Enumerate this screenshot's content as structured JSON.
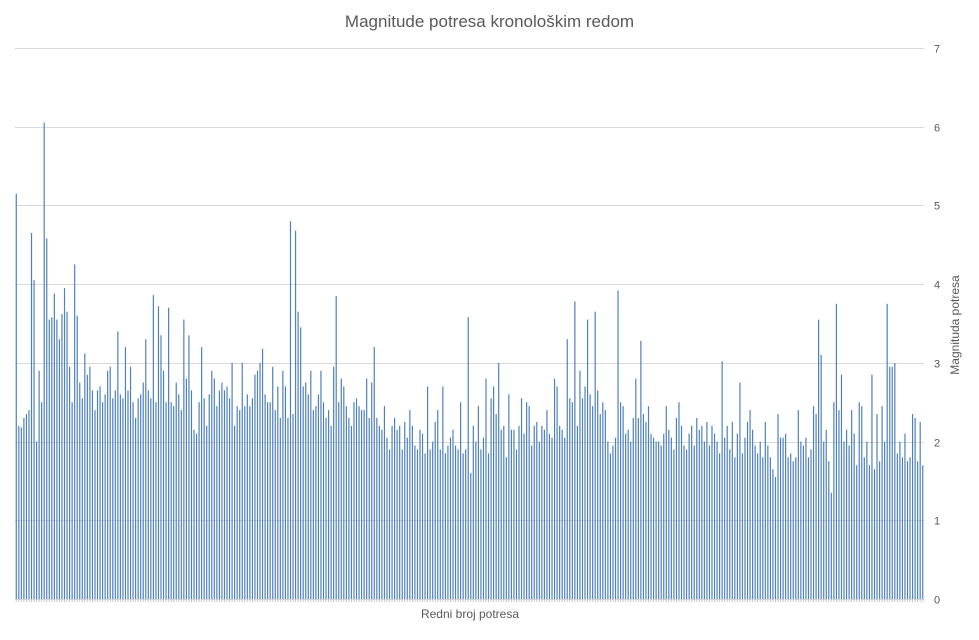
{
  "chart_data": {
    "type": "bar",
    "title": "Magnitude potresa kronološkim redom",
    "xlabel": "Redni broj potresa",
    "ylabel": "Magnituda potresa",
    "ylim": [
      0,
      7
    ],
    "yticks": [
      "0",
      "1",
      "2",
      "3",
      "4",
      "5",
      "6",
      "7"
    ],
    "grid": true,
    "y_axis_side": "right",
    "bar_color": "#4f81bd",
    "values": [
      5.15,
      2.2,
      2.18,
      2.3,
      2.35,
      2.4,
      4.65,
      4.05,
      2.0,
      2.9,
      2.5,
      6.05,
      4.58,
      3.55,
      3.58,
      3.88,
      3.55,
      3.3,
      3.62,
      3.95,
      3.65,
      2.95,
      2.5,
      4.25,
      3.6,
      2.75,
      2.55,
      3.12,
      2.85,
      2.95,
      2.65,
      2.4,
      2.65,
      2.7,
      2.5,
      2.6,
      2.9,
      2.95,
      2.55,
      2.65,
      3.4,
      2.6,
      2.55,
      3.2,
      2.65,
      2.95,
      2.5,
      2.3,
      2.55,
      2.6,
      2.75,
      3.3,
      2.65,
      2.55,
      3.86,
      2.5,
      3.72,
      3.35,
      2.9,
      2.5,
      3.7,
      2.5,
      2.45,
      2.75,
      2.6,
      2.4,
      3.55,
      2.8,
      3.35,
      2.65,
      2.15,
      2.1,
      2.5,
      3.2,
      2.55,
      2.2,
      2.6,
      2.9,
      2.8,
      2.45,
      2.65,
      2.75,
      2.65,
      2.7,
      2.55,
      3.0,
      2.2,
      2.45,
      2.4,
      3.0,
      2.45,
      2.6,
      2.45,
      2.55,
      2.85,
      2.9,
      3.0,
      3.18,
      2.6,
      2.5,
      2.5,
      2.95,
      2.4,
      2.7,
      2.3,
      2.9,
      2.7,
      2.3,
      4.8,
      2.35,
      4.68,
      3.65,
      3.45,
      2.7,
      2.75,
      2.6,
      2.9,
      2.4,
      2.45,
      2.6,
      2.9,
      2.5,
      2.3,
      2.4,
      2.2,
      2.95,
      3.85,
      2.5,
      2.8,
      2.7,
      2.45,
      2.3,
      2.2,
      2.5,
      2.55,
      2.45,
      2.4,
      2.4,
      2.8,
      2.3,
      2.75,
      3.2,
      2.3,
      2.2,
      2.15,
      2.45,
      2.05,
      1.9,
      2.2,
      2.3,
      2.15,
      2.2,
      1.9,
      2.25,
      2.05,
      2.4,
      2.2,
      1.95,
      1.9,
      2.15,
      2.1,
      1.85,
      2.7,
      1.9,
      2.0,
      2.25,
      2.4,
      1.9,
      2.7,
      1.85,
      1.95,
      2.05,
      2.15,
      1.95,
      1.9,
      2.5,
      1.85,
      1.9,
      3.58,
      1.6,
      2.2,
      2.0,
      2.45,
      1.9,
      2.05,
      2.8,
      1.85,
      2.55,
      2.7,
      2.35,
      3.0,
      2.15,
      2.2,
      1.8,
      2.6,
      2.15,
      2.15,
      1.9,
      2.2,
      2.55,
      2.1,
      2.5,
      2.45,
      1.95,
      2.2,
      2.25,
      2.0,
      2.2,
      2.15,
      2.4,
      2.1,
      2.05,
      2.8,
      2.7,
      2.2,
      2.15,
      2.05,
      3.3,
      2.55,
      2.5,
      3.78,
      2.2,
      2.9,
      2.55,
      2.7,
      3.55,
      2.6,
      2.45,
      3.65,
      2.65,
      2.35,
      2.5,
      2.4,
      2.0,
      1.85,
      1.95,
      2.05,
      3.92,
      2.5,
      2.45,
      2.1,
      2.15,
      2.0,
      2.3,
      2.8,
      2.3,
      3.28,
      2.35,
      2.25,
      2.45,
      2.1,
      2.05,
      2.0,
      2.0,
      1.95,
      2.1,
      2.45,
      2.15,
      2.05,
      1.9,
      2.3,
      2.5,
      2.2,
      1.95,
      1.9,
      2.1,
      2.2,
      1.95,
      2.3,
      2.15,
      2.2,
      2.0,
      2.25,
      1.95,
      2.2,
      2.1,
      2.0,
      1.85,
      3.02,
      2.05,
      2.2,
      1.9,
      2.25,
      1.8,
      2.1,
      2.75,
      1.85,
      2.05,
      2.25,
      2.4,
      2.15,
      1.95,
      1.85,
      2.0,
      1.8,
      2.25,
      1.95,
      1.8,
      1.65,
      1.55,
      2.35,
      2.05,
      2.05,
      2.1,
      1.8,
      1.85,
      1.75,
      1.8,
      2.4,
      2.0,
      1.95,
      2.05,
      1.8,
      1.9,
      2.45,
      2.35,
      3.55,
      3.1,
      2.0,
      2.15,
      1.75,
      1.35,
      2.5,
      3.75,
      2.4,
      2.85,
      2.0,
      2.15,
      1.95,
      2.4,
      2.1,
      1.7,
      2.5,
      2.45,
      1.8,
      2.0,
      1.7,
      2.85,
      1.65,
      2.35,
      1.75,
      2.45,
      2.0,
      3.75,
      2.95,
      2.95,
      3.0,
      1.85,
      2.0,
      1.8,
      2.1,
      1.75,
      1.8,
      2.35,
      2.3,
      1.75,
      2.25,
      1.7
    ]
  }
}
